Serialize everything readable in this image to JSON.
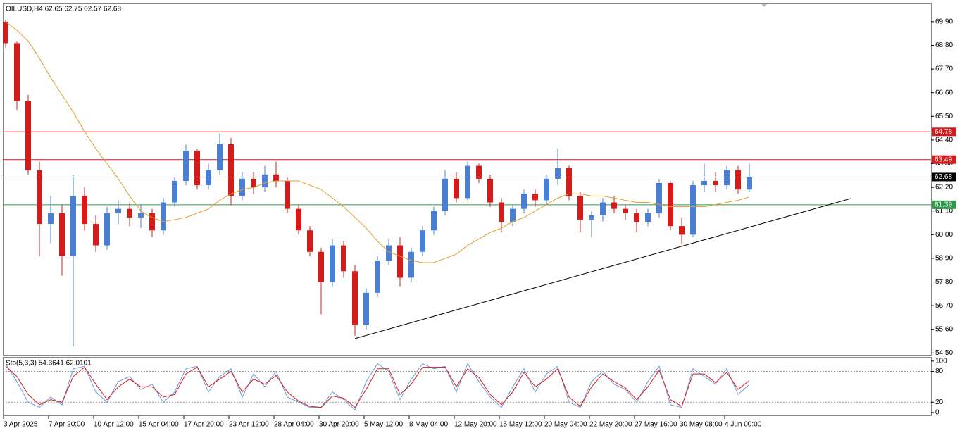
{
  "chart_data": [
    {
      "type": "candlestick",
      "title": "OILUSD,H4  62.65 62.75 62.57 62.68",
      "categories": [
        "3 Apr 2025",
        null,
        null,
        null,
        "7 Apr 20:00",
        null,
        null,
        null,
        "10 Apr 12:00",
        null,
        null,
        null,
        "15 Apr 04:00",
        null,
        null,
        null,
        "17 Apr 20:00",
        null,
        null,
        null,
        "23 Apr 12:00",
        null,
        null,
        null,
        "28 Apr 04:00",
        null,
        null,
        null,
        "30 Apr 20:00",
        null,
        null,
        null,
        "5 May 12:00",
        null,
        null,
        null,
        "8 May 04:00",
        null,
        null,
        null,
        "12 May 20:00",
        null,
        null,
        null,
        "15 May 12:00",
        null,
        null,
        null,
        "20 May 04:00",
        null,
        null,
        null,
        "22 May 20:00",
        null,
        null,
        null,
        "27 May 16:00",
        null,
        null,
        null,
        "30 May 08:00",
        null,
        null,
        null,
        "4 Jun 00:00",
        null,
        null
      ],
      "ohlc": [
        [
          69.9,
          70.0,
          68.7,
          68.9
        ],
        [
          68.9,
          69.0,
          65.8,
          66.2
        ],
        [
          66.2,
          66.5,
          62.8,
          63.0
        ],
        [
          63.0,
          63.4,
          59.0,
          60.5
        ],
        [
          60.5,
          61.8,
          59.6,
          61.0
        ],
        [
          61.0,
          61.4,
          58.1,
          59.0
        ],
        [
          59.0,
          62.8,
          54.8,
          61.8
        ],
        [
          61.8,
          62.2,
          60.2,
          60.5
        ],
        [
          60.5,
          60.9,
          59.2,
          59.5
        ],
        [
          59.5,
          61.3,
          59.3,
          61.0
        ],
        [
          61.0,
          61.6,
          60.5,
          61.2
        ],
        [
          61.2,
          61.5,
          60.4,
          60.8
        ],
        [
          60.8,
          61.4,
          60.3,
          61.0
        ],
        [
          61.0,
          61.2,
          59.9,
          60.2
        ],
        [
          60.2,
          61.7,
          60.0,
          61.5
        ],
        [
          61.5,
          62.7,
          61.3,
          62.5
        ],
        [
          62.5,
          64.2,
          62.3,
          63.9
        ],
        [
          63.9,
          64.0,
          62.1,
          62.3
        ],
        [
          62.3,
          63.3,
          62.1,
          63.0
        ],
        [
          63.0,
          64.7,
          62.8,
          64.2
        ],
        [
          64.2,
          64.5,
          61.4,
          61.8
        ],
        [
          61.8,
          62.9,
          61.6,
          62.6
        ],
        [
          62.6,
          62.9,
          61.9,
          62.2
        ],
        [
          62.2,
          63.2,
          62.0,
          62.8
        ],
        [
          62.8,
          63.4,
          62.2,
          62.5
        ],
        [
          62.5,
          62.7,
          61.0,
          61.2
        ],
        [
          61.2,
          61.4,
          60.0,
          60.2
        ],
        [
          60.2,
          60.4,
          59.0,
          59.2
        ],
        [
          59.2,
          59.4,
          56.3,
          57.8
        ],
        [
          57.8,
          59.8,
          57.6,
          59.5
        ],
        [
          59.5,
          59.7,
          58.0,
          58.3
        ],
        [
          58.3,
          58.6,
          55.3,
          55.8
        ],
        [
          55.8,
          57.5,
          55.6,
          57.3
        ],
        [
          57.3,
          59.0,
          57.1,
          58.8
        ],
        [
          58.8,
          59.8,
          58.6,
          59.5
        ],
        [
          59.5,
          59.9,
          57.6,
          58.0
        ],
        [
          58.0,
          59.4,
          57.8,
          59.2
        ],
        [
          59.2,
          60.4,
          59.0,
          60.2
        ],
        [
          60.2,
          61.3,
          60.0,
          61.1
        ],
        [
          61.1,
          63.0,
          60.9,
          62.6
        ],
        [
          62.6,
          62.9,
          61.5,
          61.7
        ],
        [
          61.7,
          63.4,
          61.6,
          63.2
        ],
        [
          63.2,
          63.3,
          62.4,
          62.6
        ],
        [
          62.6,
          62.8,
          61.3,
          61.5
        ],
        [
          61.5,
          61.7,
          60.1,
          60.6
        ],
        [
          60.6,
          61.4,
          60.4,
          61.2
        ],
        [
          61.2,
          62.1,
          61.0,
          61.9
        ],
        [
          61.9,
          62.1,
          61.3,
          61.6
        ],
        [
          61.6,
          62.8,
          61.4,
          62.6
        ],
        [
          62.6,
          64.0,
          62.3,
          63.1
        ],
        [
          63.1,
          63.2,
          61.6,
          61.8
        ],
        [
          61.8,
          62.0,
          60.1,
          60.7
        ],
        [
          60.7,
          61.1,
          59.9,
          60.9
        ],
        [
          60.9,
          61.7,
          60.6,
          61.5
        ],
        [
          61.5,
          61.8,
          61.0,
          61.2
        ],
        [
          61.2,
          61.4,
          60.7,
          61.0
        ],
        [
          61.0,
          61.2,
          60.1,
          60.6
        ],
        [
          60.6,
          61.2,
          60.4,
          61.0
        ],
        [
          61.0,
          62.6,
          60.8,
          62.4
        ],
        [
          62.4,
          62.5,
          60.2,
          60.4
        ],
        [
          60.4,
          60.8,
          59.6,
          60.0
        ],
        [
          60.0,
          62.5,
          59.9,
          62.3
        ],
        [
          62.3,
          63.3,
          62.0,
          62.5
        ],
        [
          62.5,
          62.9,
          62.0,
          62.3
        ],
        [
          62.3,
          63.2,
          62.1,
          63.0
        ],
        [
          63.0,
          63.2,
          61.9,
          62.1
        ],
        [
          62.1,
          63.3,
          62.0,
          62.68
        ]
      ],
      "up_color": "#4a7fd4",
      "down_color": "#d41c1c",
      "ma": {
        "color": "#e0a030",
        "values": [
          69.9,
          69.5,
          69.0,
          68.2,
          67.3,
          66.5,
          65.7,
          64.8,
          64.0,
          63.3,
          62.6,
          61.8,
          61.1,
          60.8,
          60.6,
          60.7,
          60.8,
          61.0,
          61.2,
          61.6,
          61.9,
          62.1,
          62.2,
          62.4,
          62.5,
          62.5,
          62.5,
          62.3,
          62.1,
          61.7,
          61.3,
          60.8,
          60.3,
          59.7,
          59.2,
          59.0,
          58.8,
          58.7,
          58.7,
          58.9,
          59.1,
          59.5,
          59.8,
          60.1,
          60.3,
          60.6,
          60.8,
          61.1,
          61.4,
          61.7,
          61.9,
          61.9,
          61.8,
          61.8,
          61.7,
          61.6,
          61.5,
          61.5,
          61.4,
          61.3,
          61.3,
          61.3,
          61.3,
          61.4,
          61.5,
          61.6,
          61.75
        ]
      },
      "levels": [
        {
          "value": 64.78,
          "color": "#d41c1c"
        },
        {
          "value": 63.49,
          "color": "#d41c1c"
        },
        {
          "value": 62.68,
          "color": "#000000"
        },
        {
          "value": 61.39,
          "color": "#2e9a4a"
        }
      ],
      "trendline": {
        "x": [
          31,
          75
        ],
        "y": [
          55.17,
          61.68
        ],
        "color": "#000000"
      },
      "ylim": [
        54.38,
        70.78
      ],
      "yticks": [
        {
          "value": 69.9,
          "label": "69.90"
        },
        {
          "value": 68.8,
          "label": "68.80"
        },
        {
          "value": 67.7,
          "label": "67.70"
        },
        {
          "value": 66.6,
          "label": "66.60"
        },
        {
          "value": 65.5,
          "label": "65.50"
        },
        {
          "value": 64.4,
          "label": "64.40"
        },
        {
          "value": 63.3,
          "label": "63.30"
        },
        {
          "value": 62.2,
          "label": "62.20"
        },
        {
          "value": 61.1,
          "label": "61.10"
        },
        {
          "value": 60.0,
          "label": "60.00"
        },
        {
          "value": 58.9,
          "label": "58.90"
        },
        {
          "value": 57.8,
          "label": "57.80"
        },
        {
          "value": 56.7,
          "label": "56.70"
        },
        {
          "value": 55.6,
          "label": "55.60"
        },
        {
          "value": 54.5,
          "label": "54.50"
        }
      ]
    },
    {
      "type": "line",
      "title": "Sto(5,3,3) 54.3641 62.0101",
      "series": [
        {
          "color": "#6a9ad8",
          "values": [
            95,
            60,
            20,
            10,
            30,
            15,
            85,
            90,
            40,
            20,
            60,
            70,
            45,
            55,
            20,
            40,
            85,
            90,
            40,
            70,
            85,
            30,
            75,
            50,
            80,
            30,
            20,
            10,
            10,
            40,
            25,
            5,
            60,
            95,
            80,
            25,
            65,
            95,
            85,
            90,
            40,
            95,
            60,
            30,
            10,
            50,
            85,
            40,
            75,
            90,
            20,
            10,
            60,
            80,
            55,
            45,
            20,
            60,
            90,
            15,
            10,
            85,
            70,
            55,
            85,
            35,
            54.3641
          ]
        },
        {
          "color": "#d41c1c",
          "values": [
            90,
            70,
            35,
            15,
            25,
            20,
            70,
            88,
            55,
            25,
            50,
            65,
            50,
            50,
            30,
            35,
            75,
            88,
            50,
            65,
            80,
            40,
            65,
            55,
            72,
            40,
            22,
            12,
            10,
            32,
            28,
            10,
            45,
            85,
            85,
            35,
            55,
            88,
            88,
            88,
            50,
            85,
            68,
            35,
            15,
            40,
            78,
            50,
            65,
            85,
            30,
            12,
            50,
            75,
            60,
            48,
            25,
            50,
            82,
            25,
            12,
            75,
            75,
            58,
            78,
            45,
            62.0101
          ]
        }
      ],
      "levels": [
        80,
        20
      ],
      "ylim": [
        -7,
        108
      ],
      "yticks": [
        100,
        80,
        20,
        0
      ]
    }
  ]
}
